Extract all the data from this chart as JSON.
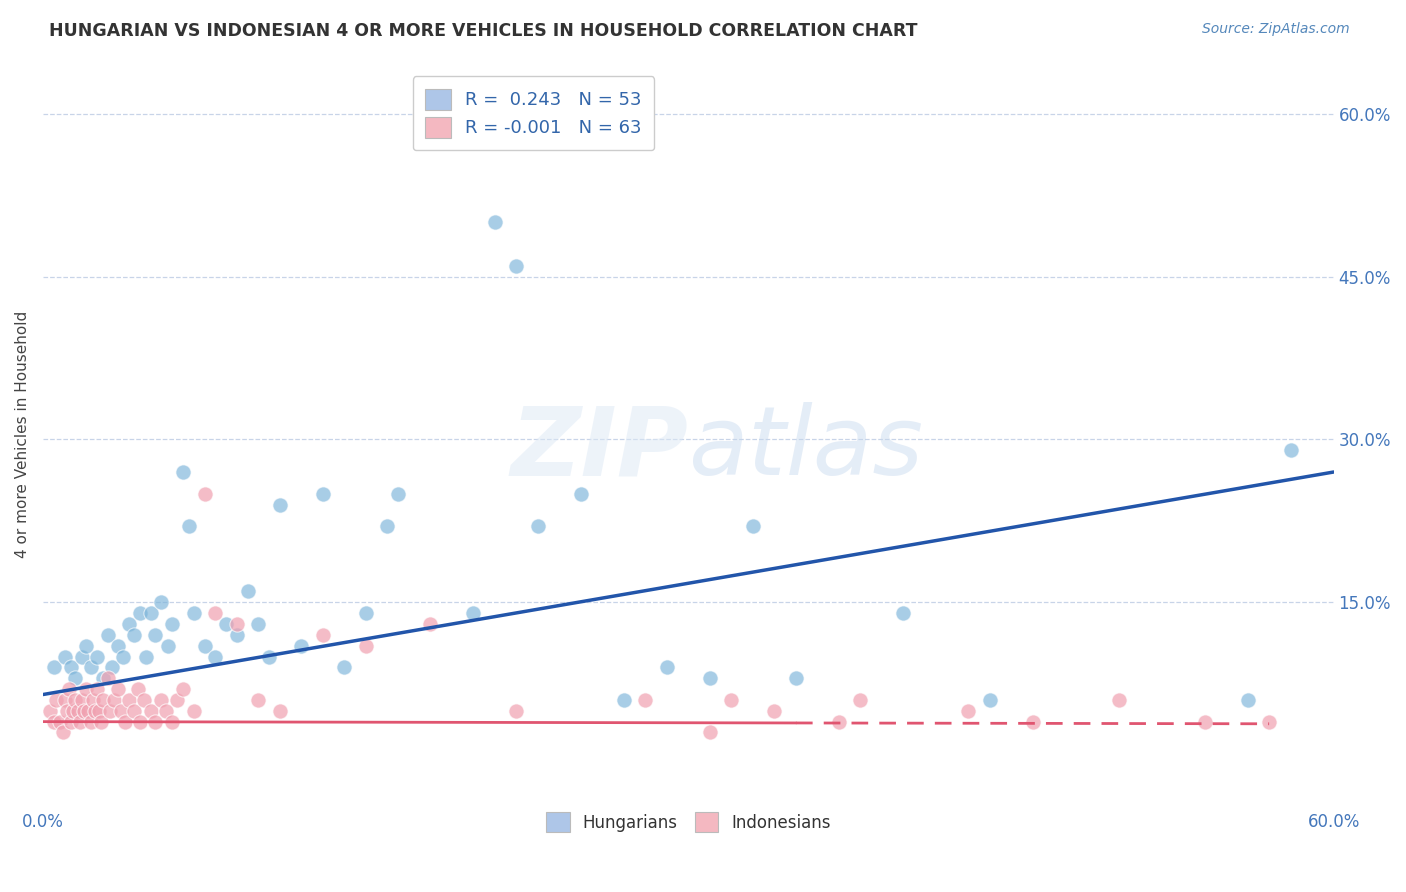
{
  "title": "HUNGARIAN VS INDONESIAN 4 OR MORE VEHICLES IN HOUSEHOLD CORRELATION CHART",
  "source_text": "Source: ZipAtlas.com",
  "ylabel": "4 or more Vehicles in Household",
  "xlim": [
    0.0,
    0.6
  ],
  "ylim": [
    -0.04,
    0.65
  ],
  "background_color": "#ffffff",
  "grid_color": "#c8d4e8",
  "blue_color": "#7ab3d9",
  "pink_color": "#f0a0b0",
  "blue_line_color": "#2255aa",
  "pink_line_color": "#e05570",
  "legend_r_blue": "R =  0.243",
  "legend_n_blue": "N = 53",
  "legend_r_pink": "R = -0.001",
  "legend_n_pink": "N = 63",
  "blue_scatter": [
    [
      0.005,
      0.09
    ],
    [
      0.01,
      0.1
    ],
    [
      0.013,
      0.09
    ],
    [
      0.015,
      0.08
    ],
    [
      0.018,
      0.1
    ],
    [
      0.02,
      0.11
    ],
    [
      0.022,
      0.09
    ],
    [
      0.025,
      0.1
    ],
    [
      0.028,
      0.08
    ],
    [
      0.03,
      0.12
    ],
    [
      0.032,
      0.09
    ],
    [
      0.035,
      0.11
    ],
    [
      0.037,
      0.1
    ],
    [
      0.04,
      0.13
    ],
    [
      0.042,
      0.12
    ],
    [
      0.045,
      0.14
    ],
    [
      0.048,
      0.1
    ],
    [
      0.05,
      0.14
    ],
    [
      0.052,
      0.12
    ],
    [
      0.055,
      0.15
    ],
    [
      0.058,
      0.11
    ],
    [
      0.06,
      0.13
    ],
    [
      0.065,
      0.27
    ],
    [
      0.068,
      0.22
    ],
    [
      0.07,
      0.14
    ],
    [
      0.075,
      0.11
    ],
    [
      0.08,
      0.1
    ],
    [
      0.085,
      0.13
    ],
    [
      0.09,
      0.12
    ],
    [
      0.095,
      0.16
    ],
    [
      0.1,
      0.13
    ],
    [
      0.105,
      0.1
    ],
    [
      0.11,
      0.24
    ],
    [
      0.12,
      0.11
    ],
    [
      0.13,
      0.25
    ],
    [
      0.14,
      0.09
    ],
    [
      0.15,
      0.14
    ],
    [
      0.16,
      0.22
    ],
    [
      0.165,
      0.25
    ],
    [
      0.2,
      0.14
    ],
    [
      0.21,
      0.5
    ],
    [
      0.22,
      0.46
    ],
    [
      0.23,
      0.22
    ],
    [
      0.25,
      0.25
    ],
    [
      0.27,
      0.06
    ],
    [
      0.29,
      0.09
    ],
    [
      0.31,
      0.08
    ],
    [
      0.33,
      0.22
    ],
    [
      0.35,
      0.08
    ],
    [
      0.4,
      0.14
    ],
    [
      0.44,
      0.06
    ],
    [
      0.56,
      0.06
    ],
    [
      0.58,
      0.29
    ]
  ],
  "pink_scatter": [
    [
      0.003,
      0.05
    ],
    [
      0.005,
      0.04
    ],
    [
      0.006,
      0.06
    ],
    [
      0.008,
      0.04
    ],
    [
      0.009,
      0.03
    ],
    [
      0.01,
      0.06
    ],
    [
      0.011,
      0.05
    ],
    [
      0.012,
      0.07
    ],
    [
      0.013,
      0.04
    ],
    [
      0.014,
      0.05
    ],
    [
      0.015,
      0.06
    ],
    [
      0.016,
      0.05
    ],
    [
      0.017,
      0.04
    ],
    [
      0.018,
      0.06
    ],
    [
      0.019,
      0.05
    ],
    [
      0.02,
      0.07
    ],
    [
      0.021,
      0.05
    ],
    [
      0.022,
      0.04
    ],
    [
      0.023,
      0.06
    ],
    [
      0.024,
      0.05
    ],
    [
      0.025,
      0.07
    ],
    [
      0.026,
      0.05
    ],
    [
      0.027,
      0.04
    ],
    [
      0.028,
      0.06
    ],
    [
      0.03,
      0.08
    ],
    [
      0.031,
      0.05
    ],
    [
      0.033,
      0.06
    ],
    [
      0.035,
      0.07
    ],
    [
      0.036,
      0.05
    ],
    [
      0.038,
      0.04
    ],
    [
      0.04,
      0.06
    ],
    [
      0.042,
      0.05
    ],
    [
      0.044,
      0.07
    ],
    [
      0.045,
      0.04
    ],
    [
      0.047,
      0.06
    ],
    [
      0.05,
      0.05
    ],
    [
      0.052,
      0.04
    ],
    [
      0.055,
      0.06
    ],
    [
      0.057,
      0.05
    ],
    [
      0.06,
      0.04
    ],
    [
      0.062,
      0.06
    ],
    [
      0.065,
      0.07
    ],
    [
      0.07,
      0.05
    ],
    [
      0.075,
      0.25
    ],
    [
      0.08,
      0.14
    ],
    [
      0.09,
      0.13
    ],
    [
      0.1,
      0.06
    ],
    [
      0.11,
      0.05
    ],
    [
      0.13,
      0.12
    ],
    [
      0.15,
      0.11
    ],
    [
      0.18,
      0.13
    ],
    [
      0.22,
      0.05
    ],
    [
      0.28,
      0.06
    ],
    [
      0.31,
      0.03
    ],
    [
      0.32,
      0.06
    ],
    [
      0.34,
      0.05
    ],
    [
      0.37,
      0.04
    ],
    [
      0.38,
      0.06
    ],
    [
      0.43,
      0.05
    ],
    [
      0.46,
      0.04
    ],
    [
      0.5,
      0.06
    ],
    [
      0.54,
      0.04
    ],
    [
      0.57,
      0.04
    ]
  ],
  "blue_line_x": [
    0.0,
    0.6
  ],
  "blue_line_y": [
    0.065,
    0.27
  ],
  "pink_line_x": [
    0.0,
    0.57
  ],
  "pink_line_y": [
    0.04,
    0.038
  ]
}
